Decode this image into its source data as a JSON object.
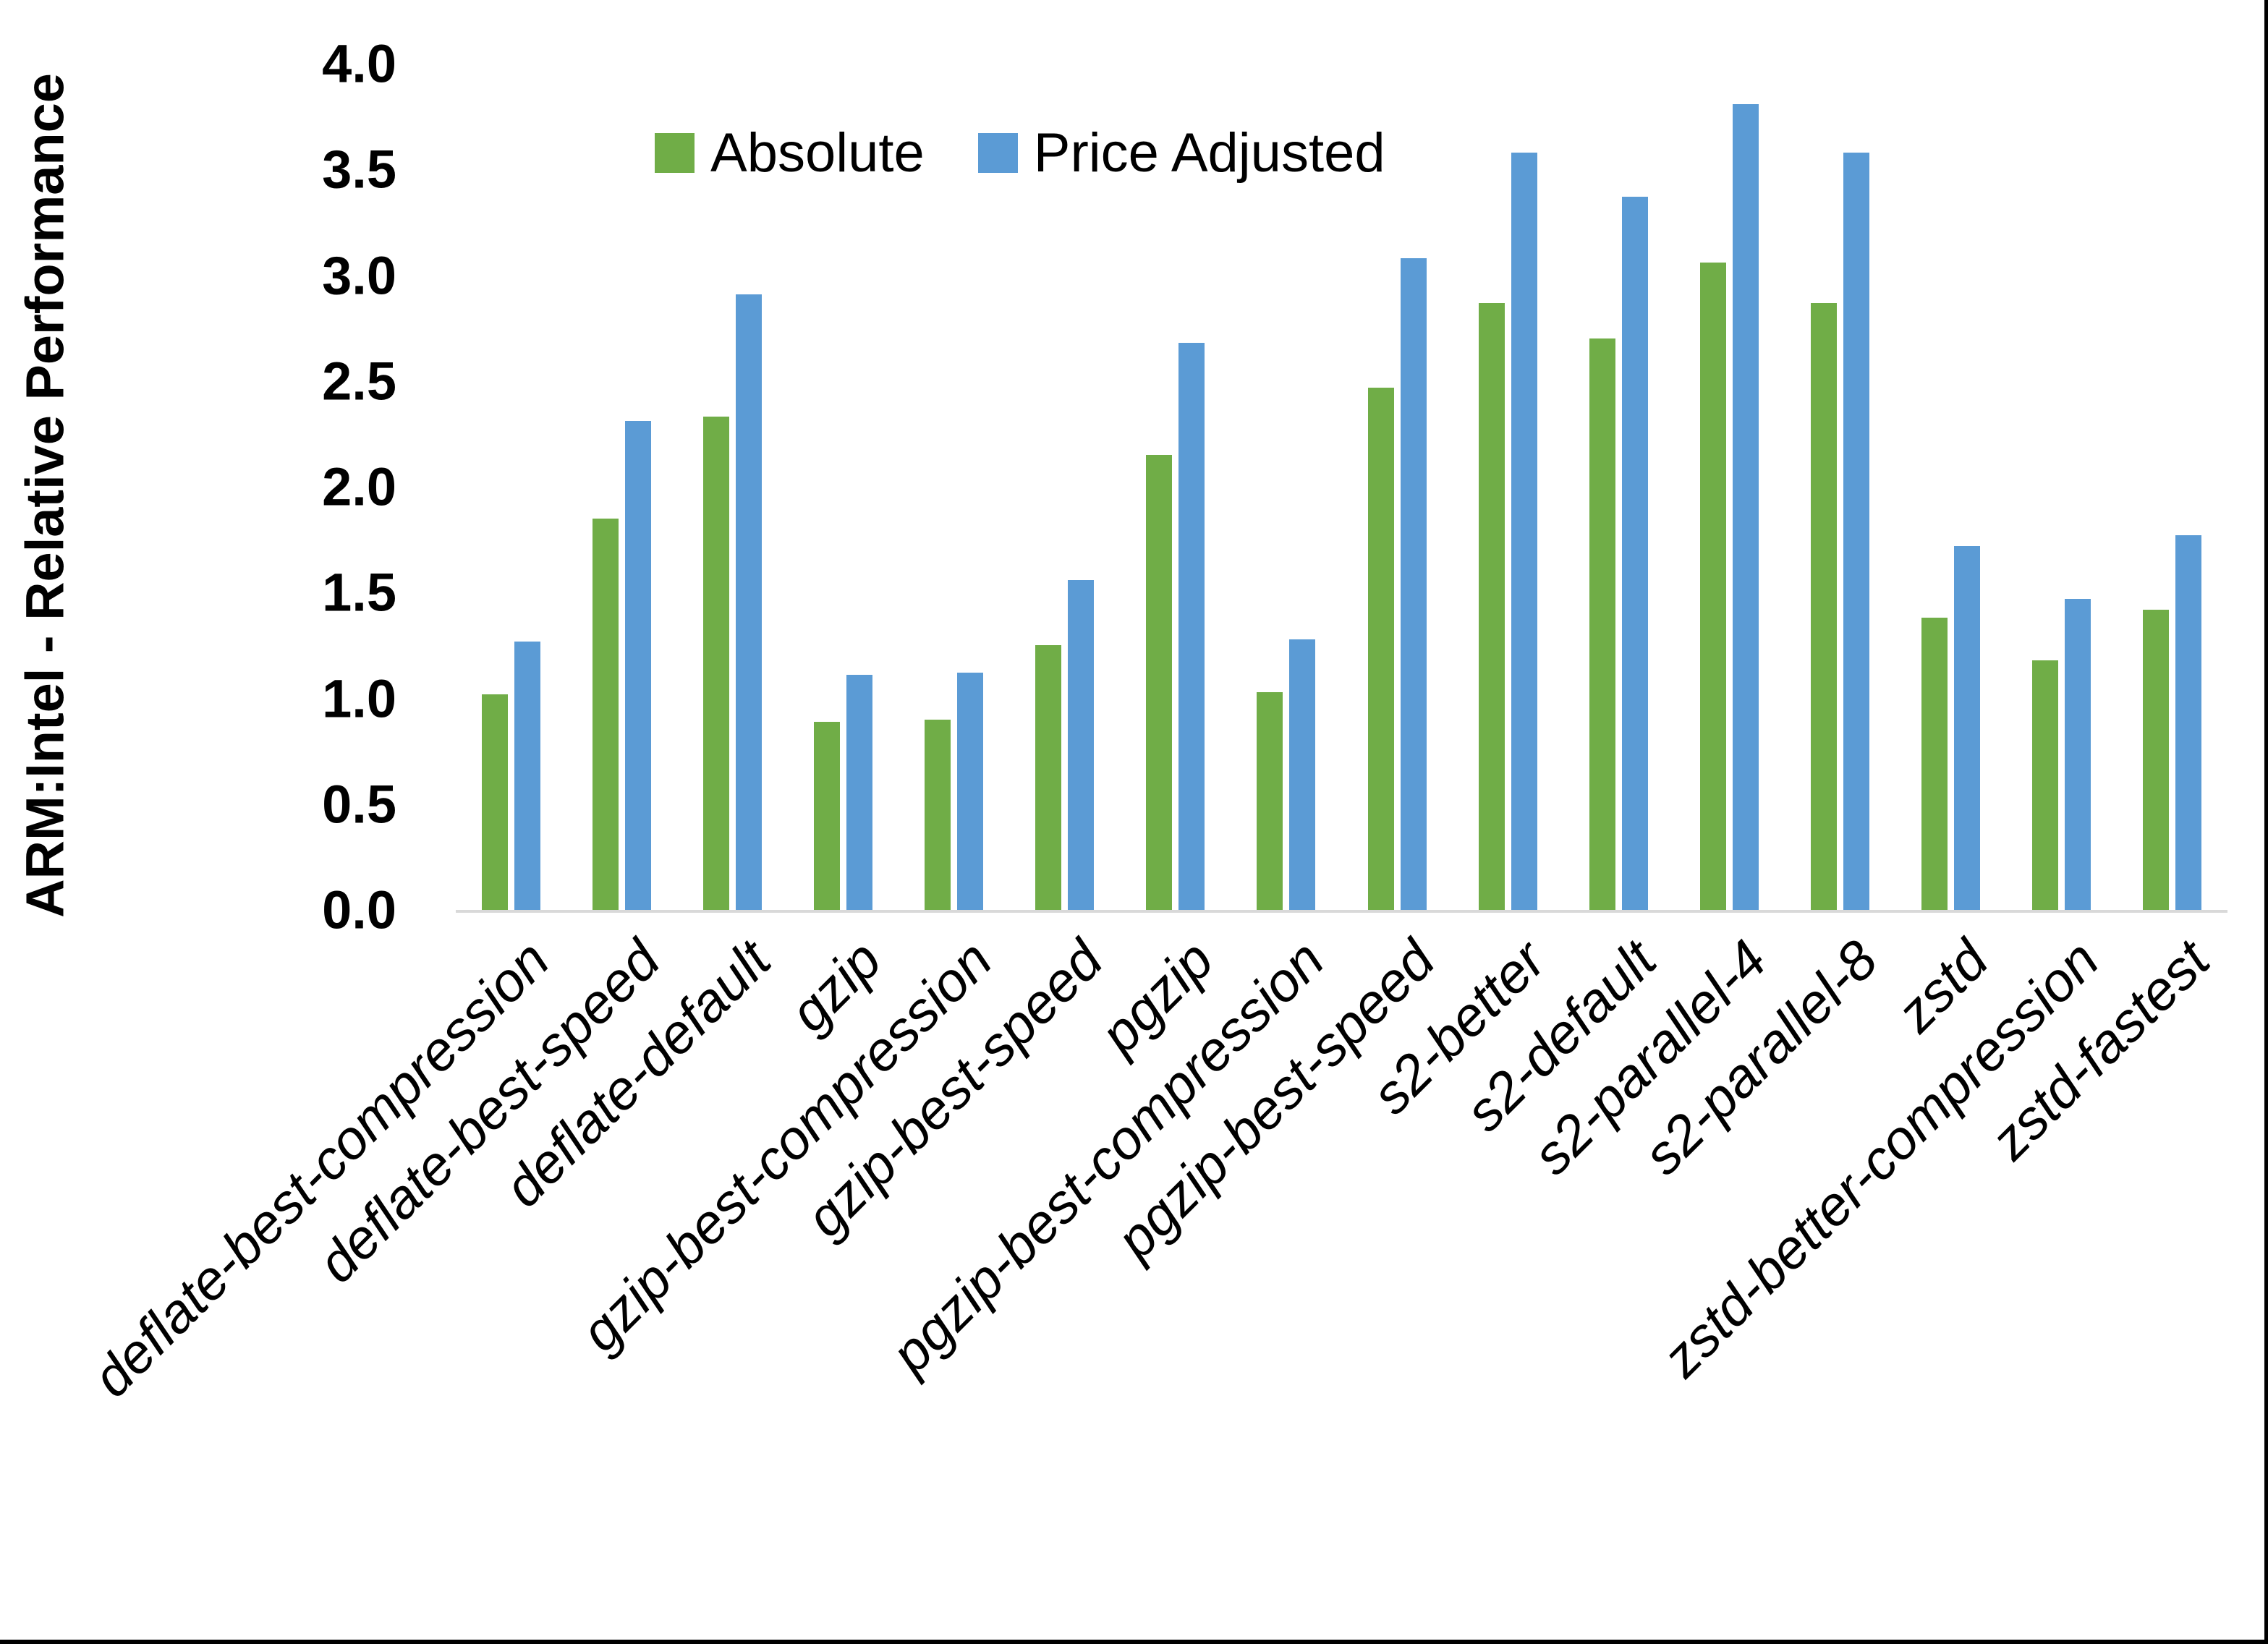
{
  "chart_data": {
    "type": "bar",
    "title": "",
    "xlabel": "",
    "ylabel": "ARM:Intel - Relative Performance",
    "ylim": [
      0.0,
      4.0
    ],
    "ytick_step": 0.5,
    "ytick_labels": [
      "0.0",
      "0.5",
      "1.0",
      "1.5",
      "2.0",
      "2.5",
      "3.0",
      "3.5",
      "4.0"
    ],
    "grid": false,
    "legend_position": "top-center",
    "categories": [
      "deflate-best-compression",
      "deflate-best-speed",
      "deflate-default",
      "gzip",
      "gzip-best-compression",
      "gzip-best-speed",
      "pgzip",
      "pgzip-best-compression",
      "pgzip-best-speed",
      "s2-better",
      "s2-default",
      "s2-parallel-4",
      "s2-parallel-8",
      "zstd",
      "zstd-better-compression",
      "zstd-fastest"
    ],
    "series": [
      {
        "name": "Absolute",
        "color": "#70AD47",
        "values": [
          1.02,
          1.85,
          2.33,
          0.89,
          0.9,
          1.25,
          2.15,
          1.03,
          2.47,
          2.87,
          2.7,
          3.06,
          2.87,
          1.38,
          1.18,
          1.42
        ]
      },
      {
        "name": "Price Adjusted",
        "color": "#5B9BD5",
        "values": [
          1.27,
          2.31,
          2.91,
          1.11,
          1.12,
          1.56,
          2.68,
          1.28,
          3.08,
          3.58,
          3.37,
          3.81,
          3.58,
          1.72,
          1.47,
          1.77
        ]
      }
    ]
  },
  "colors": {
    "background": "#FFFFFF",
    "axis_line": "#D9D9D9",
    "text": "#000000",
    "frame_border": "#000000"
  }
}
